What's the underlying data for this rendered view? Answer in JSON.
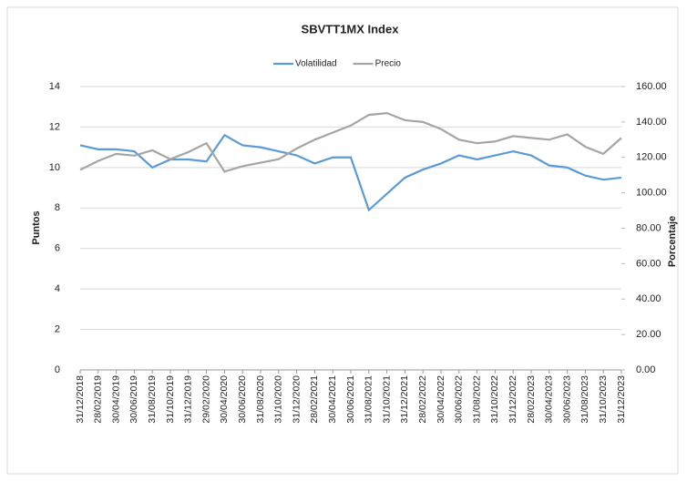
{
  "chart_data": {
    "type": "line",
    "title": "SBVTT1MX Index",
    "categories": [
      "31/12/2018",
      "28/02/2019",
      "30/04/2019",
      "30/06/2019",
      "31/08/2019",
      "31/10/2019",
      "31/12/2019",
      "29/02/2020",
      "30/04/2020",
      "30/06/2020",
      "31/08/2020",
      "31/10/2020",
      "31/12/2020",
      "28/02/2021",
      "30/04/2021",
      "30/06/2021",
      "31/08/2021",
      "31/10/2021",
      "31/12/2021",
      "28/02/2022",
      "30/04/2022",
      "30/06/2022",
      "31/08/2022",
      "31/10/2022",
      "31/12/2022",
      "28/02/2023",
      "30/04/2023",
      "30/06/2023",
      "31/08/2023",
      "31/10/2023",
      "31/12/2023"
    ],
    "series": [
      {
        "name": "Volatilidad",
        "color": "#5b9bd5",
        "values": [
          11.1,
          10.9,
          10.9,
          10.8,
          10.0,
          10.4,
          10.4,
          10.3,
          11.6,
          11.1,
          11.0,
          10.8,
          10.6,
          10.2,
          10.5,
          10.5,
          7.9,
          8.7,
          9.5,
          9.9,
          10.2,
          10.6,
          10.4,
          10.6,
          10.8,
          10.6,
          10.1,
          10.0,
          9.6,
          9.4,
          9.5
        ]
      },
      {
        "name": "Precio",
        "color": "#a5a5a5",
        "axis": "y2",
        "values": [
          113,
          118,
          122,
          121,
          124,
          119,
          123,
          128,
          112,
          115,
          117,
          119,
          125,
          130,
          134,
          138,
          144,
          145,
          141,
          140,
          136,
          130,
          128,
          129,
          132,
          131,
          130,
          133,
          126,
          122,
          131
        ]
      }
    ],
    "ylabel": "Puntos",
    "y2label": "Porcentaje",
    "ylim": [
      0,
      14
    ],
    "yticks": [
      0,
      2,
      4,
      6,
      8,
      10,
      12,
      14
    ],
    "y2lim": [
      0,
      160
    ],
    "y2ticks": [
      {
        "value": 0,
        "label": "0.00"
      },
      {
        "value": 20,
        "label": "20.00"
      },
      {
        "value": 40,
        "label": "40.00"
      },
      {
        "value": 60,
        "label": "60.00"
      },
      {
        "value": 80,
        "label": "80.00"
      },
      {
        "value": 100,
        "label": "100.00"
      },
      {
        "value": 120,
        "label": "120.00"
      },
      {
        "value": 140,
        "label": "140.00"
      },
      {
        "value": 160,
        "label": "160.00"
      }
    ],
    "grid": true,
    "legend": "top"
  }
}
